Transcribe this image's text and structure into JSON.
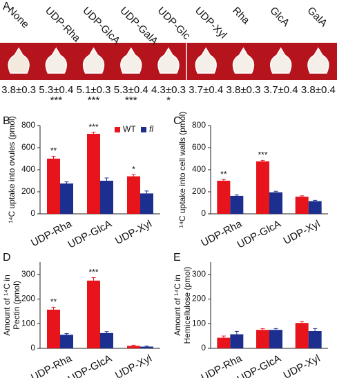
{
  "panel_a": {
    "label": "A",
    "samples": [
      {
        "name": "None",
        "value": "3.8±0.3",
        "significance": null
      },
      {
        "name": "UDP-Rha",
        "value": "5.3±0.4",
        "significance": "***"
      },
      {
        "name": "UDP-GlcA",
        "value": "5.1±0.3",
        "significance": "***"
      },
      {
        "name": "UDP-GalA",
        "value": "5.3±0.4",
        "significance": "***"
      },
      {
        "name": "UDP-Glc",
        "value": "4.3±0.3",
        "significance": "*"
      },
      {
        "name": "UDP-Xyl",
        "value": "3.7±0.4",
        "significance": null
      },
      {
        "name": "Rha",
        "value": "3.8±0.3",
        "significance": null
      },
      {
        "name": "GlcA",
        "value": "3.7±0.4",
        "significance": null
      },
      {
        "name": "GalA",
        "value": "3.8±0.4",
        "significance": null
      }
    ]
  },
  "chart_data": [
    {
      "type": "bar",
      "label": "B",
      "ylabel": [
        "¹⁴C uptake into ovules (pmol)"
      ],
      "categories": [
        "UDP-Rha",
        "UDP-GlcA",
        "UDP-Xyl"
      ],
      "series": [
        {
          "name": "WT",
          "color": "#e8141b",
          "values": [
            500,
            725,
            340
          ],
          "errors": [
            22,
            15,
            15
          ],
          "significance": [
            "**",
            "***",
            "*"
          ]
        },
        {
          "name": "fl",
          "color": "#1c2f8f",
          "values": [
            275,
            300,
            185
          ],
          "errors": [
            15,
            25,
            22
          ]
        }
      ],
      "ylim": [
        0,
        800
      ],
      "yticks": [
        0,
        200,
        400,
        600,
        800
      ],
      "legend": true
    },
    {
      "type": "bar",
      "label": "C",
      "ylabel": [
        "¹⁴C uptake into cell walls (pmol)"
      ],
      "categories": [
        "UDP-Rha",
        "UDP-GlcA",
        "UDP-Xyl"
      ],
      "series": [
        {
          "name": "WT",
          "color": "#e8141b",
          "values": [
            300,
            475,
            155
          ],
          "errors": [
            12,
            10,
            8
          ],
          "significance": [
            "**",
            "***",
            null
          ]
        },
        {
          "name": "fl",
          "color": "#1c2f8f",
          "values": [
            163,
            195,
            115
          ],
          "errors": [
            8,
            10,
            8
          ]
        }
      ],
      "ylim": [
        0,
        800
      ],
      "yticks": [
        0,
        200,
        400,
        600,
        800
      ],
      "legend": false
    },
    {
      "type": "bar",
      "label": "D",
      "ylabel": [
        "Amount of ¹⁴C in",
        "Pectin (pmol)"
      ],
      "categories": [
        "UDP-Rha",
        "UDP-GlcA",
        "UDP-Xyl"
      ],
      "series": [
        {
          "name": "WT",
          "color": "#e8141b",
          "values": [
            157,
            275,
            10
          ],
          "errors": [
            10,
            12,
            3
          ],
          "significance": [
            "**",
            "***",
            null
          ]
        },
        {
          "name": "fl",
          "color": "#1c2f8f",
          "values": [
            55,
            62,
            7
          ],
          "errors": [
            5,
            6,
            2
          ]
        }
      ],
      "ylim": [
        0,
        350
      ],
      "yticks": [
        0,
        100,
        200,
        300
      ],
      "legend": false
    },
    {
      "type": "bar",
      "label": "E",
      "ylabel": [
        "Amount of ¹⁴C in",
        "Hemicellulose (pmol)"
      ],
      "categories": [
        "UDP-Rha",
        "UDP-GlcA",
        "UDP-Xyl"
      ],
      "series": [
        {
          "name": "WT",
          "color": "#e8141b",
          "values": [
            43,
            75,
            103
          ],
          "errors": [
            7,
            5,
            6
          ]
        },
        {
          "name": "fl",
          "color": "#1c2f8f",
          "values": [
            57,
            75,
            70
          ],
          "errors": [
            12,
            5,
            10
          ]
        }
      ],
      "ylim": [
        0,
        350
      ],
      "yticks": [
        0,
        100,
        200,
        300
      ],
      "legend": false
    }
  ]
}
